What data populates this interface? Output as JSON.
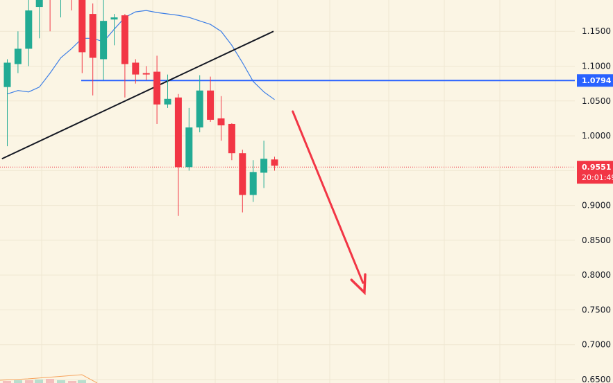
{
  "chart_data": {
    "type": "candlestick",
    "title": "",
    "xlabel": "",
    "ylabel": "",
    "ylim": [
      0.645,
      1.195
    ],
    "y_ticks": [
      "1.1500",
      "1.1000",
      "1.0500",
      "1.0000",
      "0.9500",
      "0.9000",
      "0.8500",
      "0.8000",
      "0.7500",
      "0.7000",
      "0.6500"
    ],
    "grid": true,
    "colors": {
      "up": "#22ab94",
      "down": "#f23645",
      "ma": "#3d7fe6",
      "level": "#2962ff",
      "trend": "#131722",
      "arrow": "#f23645",
      "price_line": "#f23645"
    },
    "candles": [
      {
        "o": 1.07,
        "h": 1.11,
        "l": 0.985,
        "c": 1.105
      },
      {
        "o": 1.103,
        "h": 1.15,
        "l": 1.09,
        "c": 1.125
      },
      {
        "o": 1.125,
        "h": 1.215,
        "l": 1.1,
        "c": 1.18
      },
      {
        "o": 1.185,
        "h": 1.23,
        "l": 1.14,
        "c": 1.198
      },
      {
        "o": 1.2,
        "h": 1.215,
        "l": 1.15,
        "c": 1.195
      },
      {
        "o": 1.198,
        "h": 1.23,
        "l": 1.17,
        "c": 1.2
      },
      {
        "o": 1.205,
        "h": 1.21,
        "l": 1.18,
        "c": 1.195
      },
      {
        "o": 1.198,
        "h": 1.2,
        "l": 1.09,
        "c": 1.12
      },
      {
        "o": 1.175,
        "h": 1.19,
        "l": 1.058,
        "c": 1.112
      },
      {
        "o": 1.11,
        "h": 1.2,
        "l": 1.08,
        "c": 1.165
      },
      {
        "o": 1.167,
        "h": 1.175,
        "l": 1.13,
        "c": 1.17
      },
      {
        "o": 1.173,
        "h": 1.175,
        "l": 1.055,
        "c": 1.103
      },
      {
        "o": 1.105,
        "h": 1.11,
        "l": 1.075,
        "c": 1.088
      },
      {
        "o": 1.09,
        "h": 1.1,
        "l": 1.08,
        "c": 1.088
      },
      {
        "o": 1.092,
        "h": 1.115,
        "l": 1.017,
        "c": 1.045
      },
      {
        "o": 1.045,
        "h": 1.088,
        "l": 1.04,
        "c": 1.053
      },
      {
        "o": 1.055,
        "h": 1.06,
        "l": 0.885,
        "c": 0.955
      },
      {
        "o": 0.955,
        "h": 1.04,
        "l": 0.95,
        "c": 1.012
      },
      {
        "o": 1.012,
        "h": 1.087,
        "l": 1.005,
        "c": 1.065
      },
      {
        "o": 1.065,
        "h": 1.085,
        "l": 1.02,
        "c": 1.023
      },
      {
        "o": 1.025,
        "h": 1.057,
        "l": 0.993,
        "c": 1.015
      },
      {
        "o": 1.017,
        "h": 1.018,
        "l": 0.965,
        "c": 0.975
      },
      {
        "o": 0.975,
        "h": 0.98,
        "l": 0.89,
        "c": 0.915
      },
      {
        "o": 0.915,
        "h": 0.965,
        "l": 0.905,
        "c": 0.948
      },
      {
        "o": 0.947,
        "h": 0.993,
        "l": 0.925,
        "c": 0.967
      },
      {
        "o": 0.966,
        "h": 0.97,
        "l": 0.95,
        "c": 0.957
      }
    ],
    "moving_average": [
      1.06,
      1.065,
      1.063,
      1.07,
      1.09,
      1.112,
      1.125,
      1.14,
      1.14,
      1.135,
      1.153,
      1.17,
      1.178,
      1.18,
      1.177,
      1.175,
      1.173,
      1.17,
      1.165,
      1.16,
      1.15,
      1.13,
      1.105,
      1.078,
      1.063,
      1.052
    ],
    "horizontal_level": {
      "value": 1.0794,
      "label": "1.0794"
    },
    "current_price": {
      "value": 0.9551,
      "label": "0.9551",
      "countdown": "20:01:49"
    },
    "trendline": {
      "start": {
        "index": -0.5,
        "value": 0.967
      },
      "end": {
        "index": 24.9,
        "value": 1.15
      }
    },
    "projection_arrow": {
      "start": {
        "index": 26.7,
        "value": 1.035
      },
      "end": {
        "index": 33.4,
        "value": 0.775
      }
    }
  }
}
